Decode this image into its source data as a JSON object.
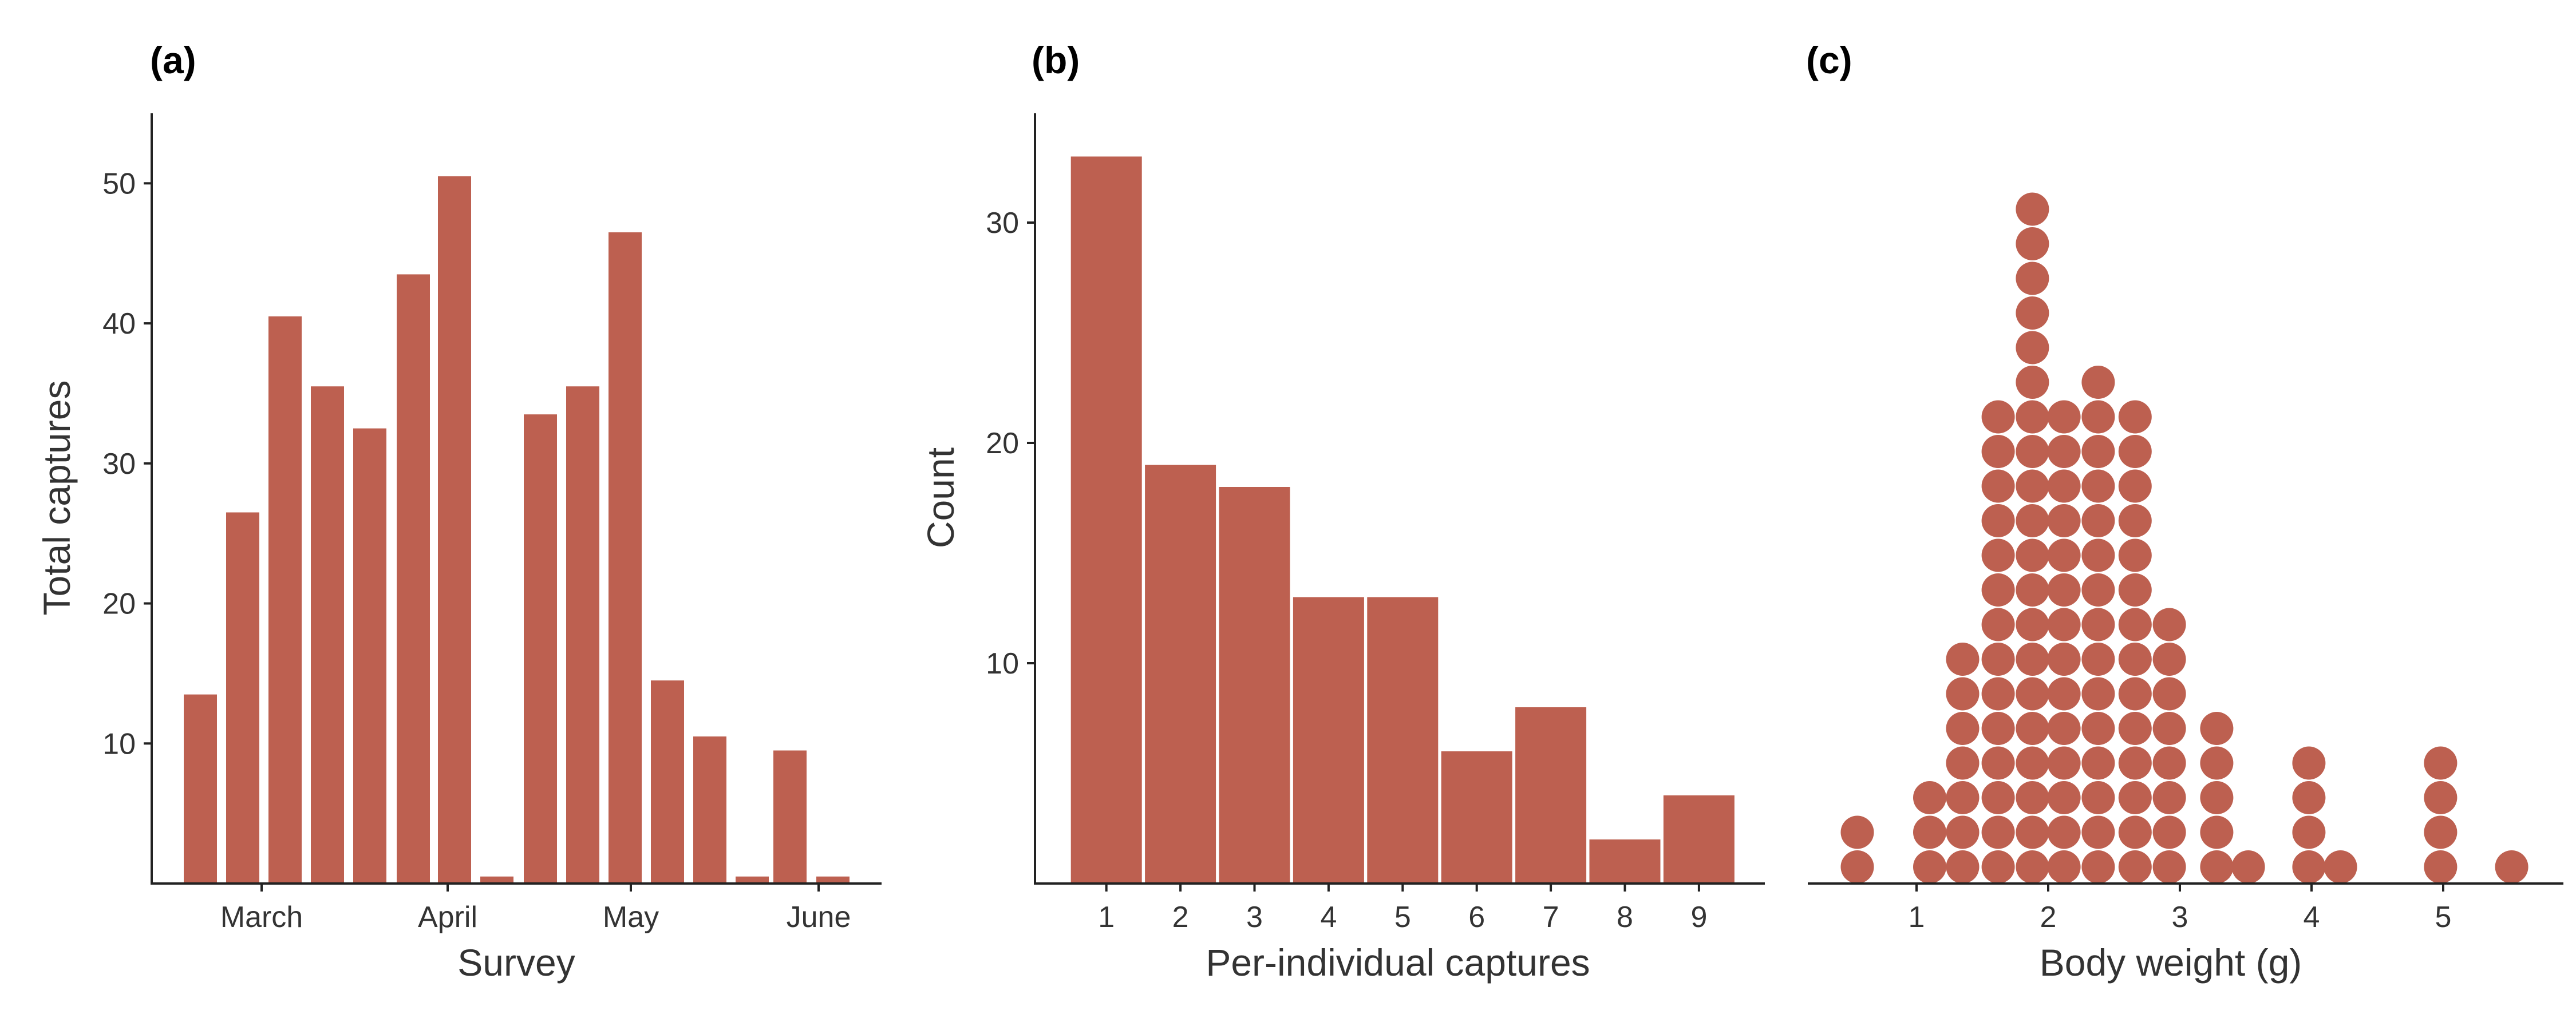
{
  "colors": {
    "fill": "#bd6050",
    "axis": "#222222",
    "text": "#333333"
  },
  "chart_data": [
    {
      "panel": "(a)",
      "type": "bar",
      "xlabel": "Survey",
      "ylabel": "Total captures",
      "x_tick_labels": [
        "March",
        "April",
        "May",
        "June"
      ],
      "y_ticks": [
        10,
        20,
        30,
        40,
        50
      ],
      "ylim": [
        0,
        55
      ],
      "grid": false,
      "values": [
        13.5,
        26.5,
        40.5,
        35.5,
        32.5,
        43.5,
        50.5,
        0.5,
        33.5,
        35.5,
        46.5,
        14.5,
        10.5,
        0.5,
        9.5,
        0.5
      ]
    },
    {
      "panel": "(b)",
      "type": "bar",
      "xlabel": "Per-individual captures",
      "ylabel": "Count",
      "categories": [
        "1",
        "2",
        "3",
        "4",
        "5",
        "6",
        "7",
        "8",
        "9"
      ],
      "y_ticks": [
        10,
        20,
        30
      ],
      "ylim": [
        0,
        35
      ],
      "grid": false,
      "values": [
        33,
        19,
        18,
        13,
        13,
        6,
        8,
        2,
        4
      ]
    },
    {
      "panel": "(c)",
      "type": "scatter",
      "subtype": "dotplot",
      "xlabel": "Body weight (g)",
      "ylabel": "",
      "x_ticks": [
        1,
        2,
        3,
        4,
        5
      ],
      "xlim": [
        0.5,
        5.75
      ],
      "grid": false,
      "bins": [
        {
          "x": 0.55,
          "count": 2
        },
        {
          "x": 1.1,
          "count": 3
        },
        {
          "x": 1.35,
          "count": 7
        },
        {
          "x": 1.62,
          "count": 14
        },
        {
          "x": 1.88,
          "count": 20
        },
        {
          "x": 2.12,
          "count": 14
        },
        {
          "x": 2.38,
          "count": 15
        },
        {
          "x": 2.66,
          "count": 14
        },
        {
          "x": 2.92,
          "count": 8
        },
        {
          "x": 3.28,
          "count": 5
        },
        {
          "x": 3.52,
          "count": 1
        },
        {
          "x": 3.98,
          "count": 4
        },
        {
          "x": 4.22,
          "count": 1
        },
        {
          "x": 4.98,
          "count": 4
        },
        {
          "x": 5.52,
          "count": 1
        }
      ]
    }
  ]
}
